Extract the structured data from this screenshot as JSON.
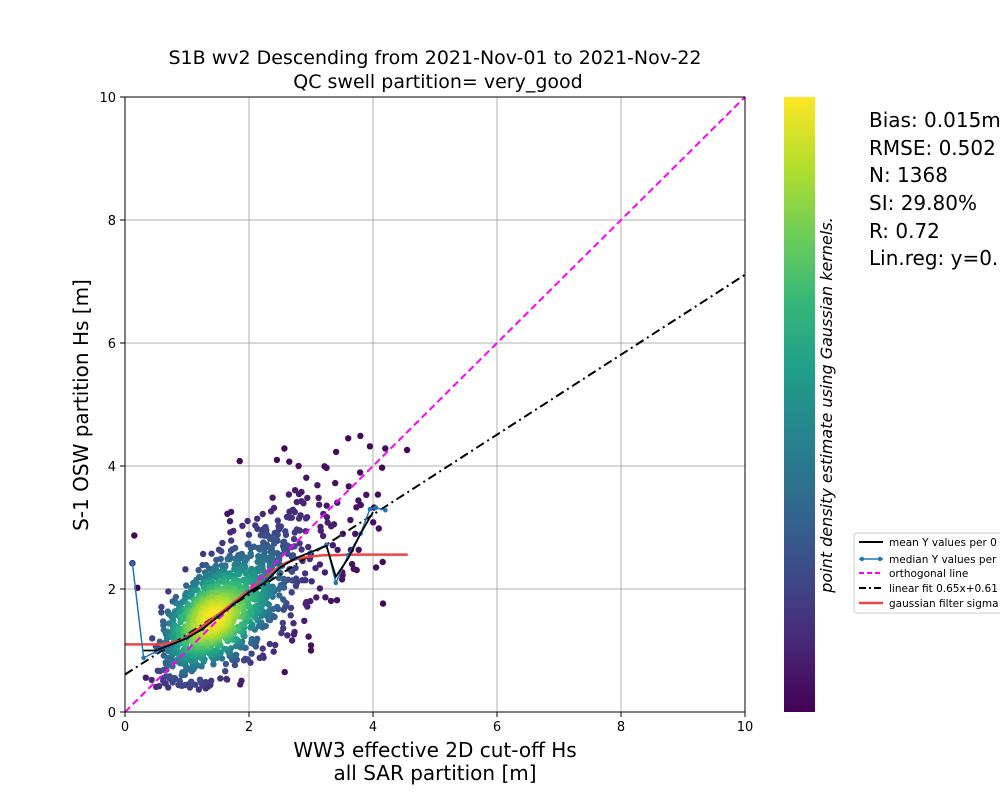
{
  "chart_data": {
    "type": "scatter",
    "title_line1": "S1B wv2 Descending from 2021-Nov-01 to 2021-Nov-22",
    "title_line2": "QC swell partition= very_good",
    "xlabel_line1": "WW3 effective 2D cut-off Hs",
    "xlabel_line2": "all SAR partition [m]",
    "ylabel": "S-1 OSW partition Hs [m]",
    "xlim": [
      0,
      10
    ],
    "ylim": [
      0,
      10
    ],
    "xticks": [
      "0",
      "2",
      "4",
      "6",
      "8",
      "10"
    ],
    "yticks": [
      "0",
      "2",
      "4",
      "6",
      "8",
      "10"
    ],
    "grid": true,
    "colorbar_label": "point density estimate using Gaussian kernels.",
    "colormap_colors": [
      "#440154",
      "#482878",
      "#3e4989",
      "#31688e",
      "#26828e",
      "#1f9e89",
      "#35b779",
      "#6ece58",
      "#b5de2b",
      "#fde725"
    ],
    "stats": [
      "Bias: 0.015m",
      "RMSE: 0.502",
      "N: 1368",
      "SI: 29.80%",
      "R: 0.72",
      "Lin.reg: y=0."
    ],
    "legend": {
      "placement": "right, outside axes",
      "entries": [
        {
          "label": "mean Y values per 0",
          "color": "#000000",
          "style": "solid"
        },
        {
          "label": "median Y values per",
          "color": "#1f77b4",
          "style": "solid-dots"
        },
        {
          "label": "orthogonal line",
          "color": "#ff00ff",
          "style": "dashed"
        },
        {
          "label": "linear fit 0.65x+0.61",
          "color": "#000000",
          "style": "dashdot"
        },
        {
          "label": "gaussian filter sigma",
          "color": "#ef4444",
          "style": "solid"
        }
      ]
    },
    "series": {
      "mean": {
        "x": [
          0.3,
          0.5,
          0.75,
          1.0,
          1.25,
          1.5,
          1.75,
          2.0,
          2.25,
          2.5,
          2.75,
          3.0,
          3.25,
          3.4,
          3.6,
          3.8,
          4.0
        ],
        "y": [
          1.0,
          1.0,
          1.1,
          1.2,
          1.35,
          1.55,
          1.75,
          1.95,
          2.1,
          2.35,
          2.5,
          2.6,
          2.7,
          2.2,
          2.5,
          2.9,
          3.25
        ]
      },
      "median": {
        "x": [
          0.12,
          0.3,
          0.5,
          0.75,
          1.0,
          1.25,
          1.5,
          1.75,
          2.0,
          2.25,
          2.5,
          2.75,
          3.0,
          3.25,
          3.4,
          3.6,
          3.8,
          3.95,
          4.05,
          4.2
        ],
        "y": [
          2.42,
          0.88,
          0.98,
          1.08,
          1.2,
          1.35,
          1.55,
          1.75,
          1.95,
          2.15,
          2.35,
          2.5,
          2.6,
          2.72,
          2.1,
          2.55,
          2.9,
          3.3,
          3.32,
          3.28
        ]
      },
      "orthogonal": {
        "x": [
          0,
          10
        ],
        "y": [
          0,
          10
        ]
      },
      "linear_fit": {
        "slope": 0.65,
        "intercept": 0.61,
        "x": [
          0,
          10
        ]
      },
      "gaussian_filter": {
        "x": [
          0,
          0.3,
          0.6,
          0.9,
          1.2,
          1.5,
          1.8,
          2.1,
          2.4,
          2.6,
          2.8,
          3.0,
          3.2,
          3.4,
          3.6,
          3.8,
          4.0,
          4.3,
          4.56
        ],
        "y": [
          1.1,
          1.1,
          1.1,
          1.16,
          1.36,
          1.58,
          1.82,
          2.05,
          2.3,
          2.43,
          2.5,
          2.53,
          2.55,
          2.55,
          2.56,
          2.56,
          2.56,
          2.56,
          2.56
        ]
      },
      "scatter_generation": {
        "n": 1368,
        "bulk_center_x": 1.55,
        "bulk_center_y": 1.55,
        "outliers": [
          [
            0.12,
            2.42
          ],
          [
            0.15,
            2.87
          ],
          [
            1.85,
            4.08
          ],
          [
            2.45,
            4.1
          ],
          [
            3.6,
            4.45
          ],
          [
            3.95,
            4.32
          ],
          [
            4.55,
            4.26
          ],
          [
            4.05,
            2.35
          ],
          [
            3.0,
            1.0
          ],
          [
            0.55,
            0.42
          ],
          [
            0.2,
            2.02
          ],
          [
            3.25,
            3.97
          ],
          [
            2.65,
            4.07
          ],
          [
            2.8,
            4.0
          ]
        ]
      }
    }
  }
}
